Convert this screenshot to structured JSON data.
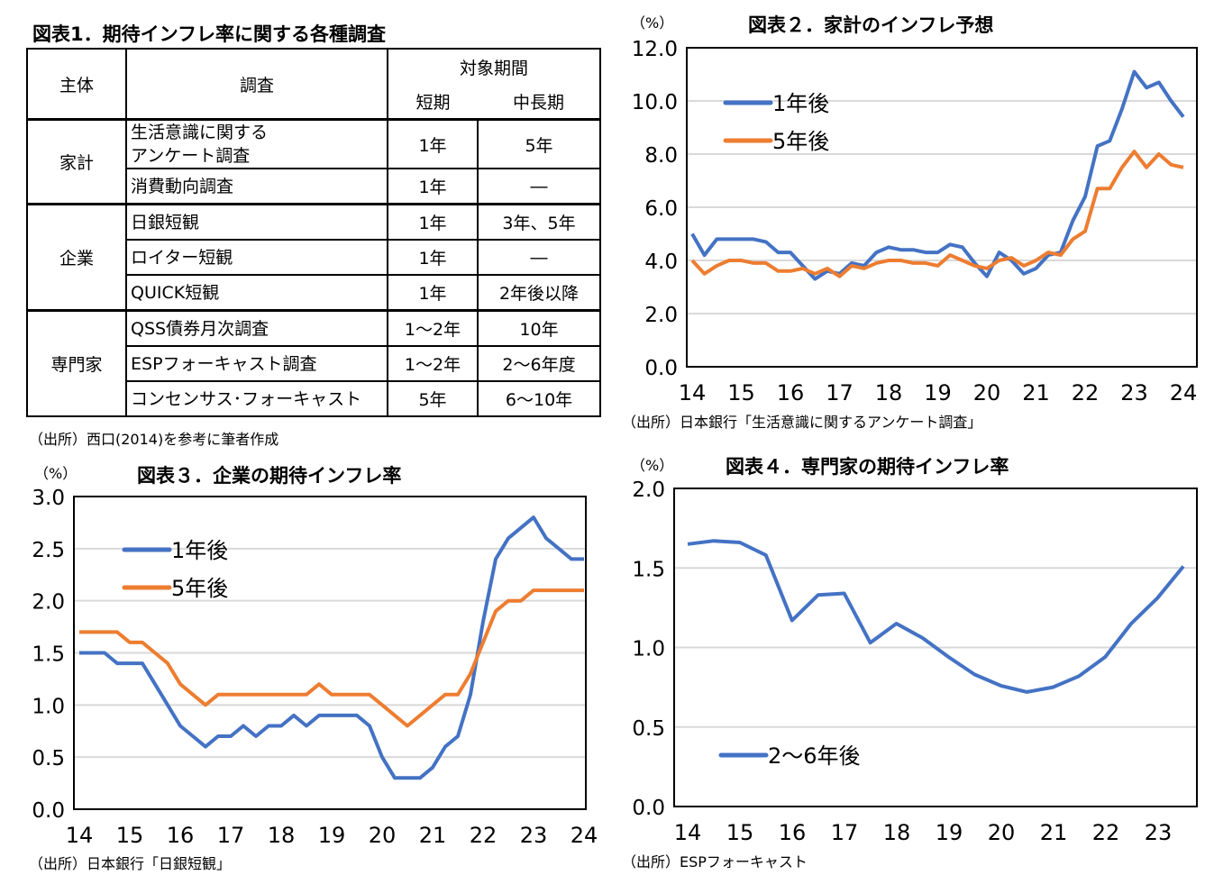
{
  "table_section": {
    "title": "図表1．期待インフレ率に関する各種調査",
    "headers": {
      "subject": "主体",
      "survey": "調査",
      "period": "対象期間",
      "short": "短期",
      "long": "中長期"
    },
    "groups": [
      {
        "subject": "家計",
        "rows": [
          {
            "survey": "生活意識に関する\nアンケート調査",
            "short": "1年",
            "long": "5年"
          },
          {
            "survey": "消費動向調査",
            "short": "1年",
            "long": "―"
          }
        ]
      },
      {
        "subject": "企業",
        "rows": [
          {
            "survey": "日銀短観",
            "short": "1年",
            "long": "3年、5年"
          },
          {
            "survey": "ロイター短観",
            "short": "1年",
            "long": "―"
          },
          {
            "survey": "QUICK短観",
            "short": "1年",
            "long": "2年後以降"
          }
        ]
      },
      {
        "subject": "専門家",
        "rows": [
          {
            "survey": "QSS債券月次調査",
            "short": "1～2年",
            "long": "10年"
          },
          {
            "survey": "ESPフォーキャスト調査",
            "short": "1～2年",
            "long": "2～6年度"
          },
          {
            "survey": "コンセンサス･フォーキャスト",
            "short": "5年",
            "long": "6～10年"
          }
        ]
      }
    ],
    "source": "（出所）西口(2014)を参考に筆者作成"
  },
  "chart_data": [
    {
      "id": "c2",
      "type": "line",
      "title": "図表２．家計のインフレ予想",
      "unit": "（%）",
      "source": "（出所）日本銀行「生活意識に関するアンケート調査」",
      "ylim": [
        0,
        12
      ],
      "yticks": [
        "0.0",
        "2.0",
        "4.0",
        "6.0",
        "8.0",
        "10.0",
        "12.0"
      ],
      "xticks": [
        "14",
        "15",
        "16",
        "17",
        "18",
        "19",
        "20",
        "21",
        "22",
        "23",
        "24"
      ],
      "grid": true,
      "legend": "top-left",
      "series": [
        {
          "name": "1年後",
          "color": "#4472C4",
          "values": [
            5.0,
            4.2,
            4.8,
            4.8,
            4.8,
            4.8,
            4.7,
            4.3,
            4.3,
            3.8,
            3.3,
            3.6,
            3.5,
            3.9,
            3.8,
            4.3,
            4.5,
            4.4,
            4.4,
            4.3,
            4.3,
            4.6,
            4.5,
            3.9,
            3.4,
            4.3,
            4.0,
            3.5,
            3.7,
            4.2,
            4.3,
            5.5,
            6.4,
            8.3,
            8.5,
            9.7,
            11.1,
            10.5,
            10.7,
            10.0,
            9.4
          ]
        },
        {
          "name": "5年後",
          "color": "#ED7D31",
          "values": [
            4.0,
            3.5,
            3.8,
            4.0,
            4.0,
            3.9,
            3.9,
            3.6,
            3.6,
            3.7,
            3.5,
            3.7,
            3.4,
            3.8,
            3.7,
            3.9,
            4.0,
            4.0,
            3.9,
            3.9,
            3.8,
            4.2,
            4.0,
            3.8,
            3.7,
            4.0,
            4.1,
            3.8,
            4.0,
            4.3,
            4.2,
            4.8,
            5.1,
            6.7,
            6.7,
            7.5,
            8.1,
            7.5,
            8.0,
            7.6,
            7.5
          ]
        }
      ]
    },
    {
      "id": "c3",
      "type": "line",
      "title": "図表３．企業の期待インフレ率",
      "unit": "（%）",
      "source": "（出所）日本銀行「日銀短観」",
      "ylim": [
        0,
        3
      ],
      "yticks": [
        "0.0",
        "0.5",
        "1.0",
        "1.5",
        "2.0",
        "2.5",
        "3.0"
      ],
      "xticks": [
        "14",
        "15",
        "16",
        "17",
        "18",
        "19",
        "20",
        "21",
        "22",
        "23",
        "24"
      ],
      "grid": true,
      "legend": "top-left",
      "series": [
        {
          "name": "1年後",
          "color": "#4472C4",
          "values": [
            1.5,
            1.5,
            1.5,
            1.4,
            1.4,
            1.4,
            1.2,
            1.0,
            0.8,
            0.7,
            0.6,
            0.7,
            0.7,
            0.8,
            0.7,
            0.8,
            0.8,
            0.9,
            0.8,
            0.9,
            0.9,
            0.9,
            0.9,
            0.8,
            0.5,
            0.3,
            0.3,
            0.3,
            0.4,
            0.6,
            0.7,
            1.1,
            1.8,
            2.4,
            2.6,
            2.7,
            2.8,
            2.6,
            2.5,
            2.4,
            2.4
          ]
        },
        {
          "name": "5年後",
          "color": "#ED7D31",
          "values": [
            1.7,
            1.7,
            1.7,
            1.7,
            1.6,
            1.6,
            1.5,
            1.4,
            1.2,
            1.1,
            1.0,
            1.1,
            1.1,
            1.1,
            1.1,
            1.1,
            1.1,
            1.1,
            1.1,
            1.2,
            1.1,
            1.1,
            1.1,
            1.1,
            1.0,
            0.9,
            0.8,
            0.9,
            1.0,
            1.1,
            1.1,
            1.3,
            1.6,
            1.9,
            2.0,
            2.0,
            2.1,
            2.1,
            2.1,
            2.1,
            2.1
          ]
        }
      ]
    },
    {
      "id": "c4",
      "type": "line",
      "title": "図表４．専門家の期待インフレ率",
      "unit": "（%）",
      "source": "（出所）ESPフォーキャスト",
      "ylim": [
        0,
        2
      ],
      "yticks": [
        "0.0",
        "0.5",
        "1.0",
        "1.5",
        "2.0"
      ],
      "xticks": [
        "14",
        "15",
        "16",
        "17",
        "18",
        "19",
        "20",
        "21",
        "22",
        "23"
      ],
      "grid": true,
      "legend": "bottom-left",
      "series": [
        {
          "name": "2～6年後",
          "color": "#4472C4",
          "values": [
            1.65,
            1.67,
            1.66,
            1.58,
            1.17,
            1.33,
            1.34,
            1.03,
            1.15,
            1.06,
            0.94,
            0.83,
            0.76,
            0.72,
            0.75,
            0.82,
            0.94,
            1.15,
            1.31,
            1.51
          ]
        }
      ]
    }
  ]
}
